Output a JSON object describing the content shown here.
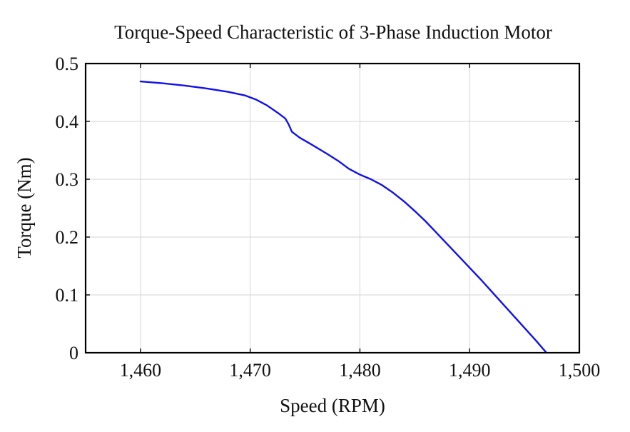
{
  "chart_data": {
    "type": "line",
    "title": "Torque-Speed Characteristic of 3-Phase Induction Motor",
    "xlabel": "Speed (RPM)",
    "ylabel": "Torque (Nm)",
    "xlim": [
      1455,
      1500
    ],
    "ylim": [
      0,
      0.5
    ],
    "x_ticks": [
      1460,
      1470,
      1480,
      1490,
      1500
    ],
    "x_tick_labels": [
      "1,460",
      "1,470",
      "1,480",
      "1,490",
      "1,500"
    ],
    "y_ticks": [
      0,
      0.1,
      0.2,
      0.3,
      0.4,
      0.5
    ],
    "y_tick_labels": [
      "0",
      "0.1",
      "0.2",
      "0.3",
      "0.4",
      "0.5"
    ],
    "grid": true,
    "series": [
      {
        "color": "#1010f0",
        "x": [
          1460,
          1462,
          1464,
          1466,
          1468,
          1469.5,
          1470.5,
          1471.5,
          1472.5,
          1473.2,
          1473.5,
          1473.8,
          1474.5,
          1475.5,
          1477,
          1478,
          1479,
          1480,
          1481,
          1482,
          1483,
          1484,
          1485,
          1486,
          1487,
          1488,
          1489,
          1490,
          1491,
          1492,
          1493,
          1494,
          1495,
          1496,
          1497
        ],
        "y": [
          0.469,
          0.466,
          0.462,
          0.457,
          0.451,
          0.445,
          0.438,
          0.428,
          0.415,
          0.405,
          0.395,
          0.382,
          0.372,
          0.361,
          0.344,
          0.332,
          0.318,
          0.308,
          0.3,
          0.29,
          0.277,
          0.262,
          0.245,
          0.227,
          0.207,
          0.187,
          0.167,
          0.147,
          0.127,
          0.106,
          0.085,
          0.064,
          0.043,
          0.022,
          0.0
        ]
      }
    ]
  }
}
